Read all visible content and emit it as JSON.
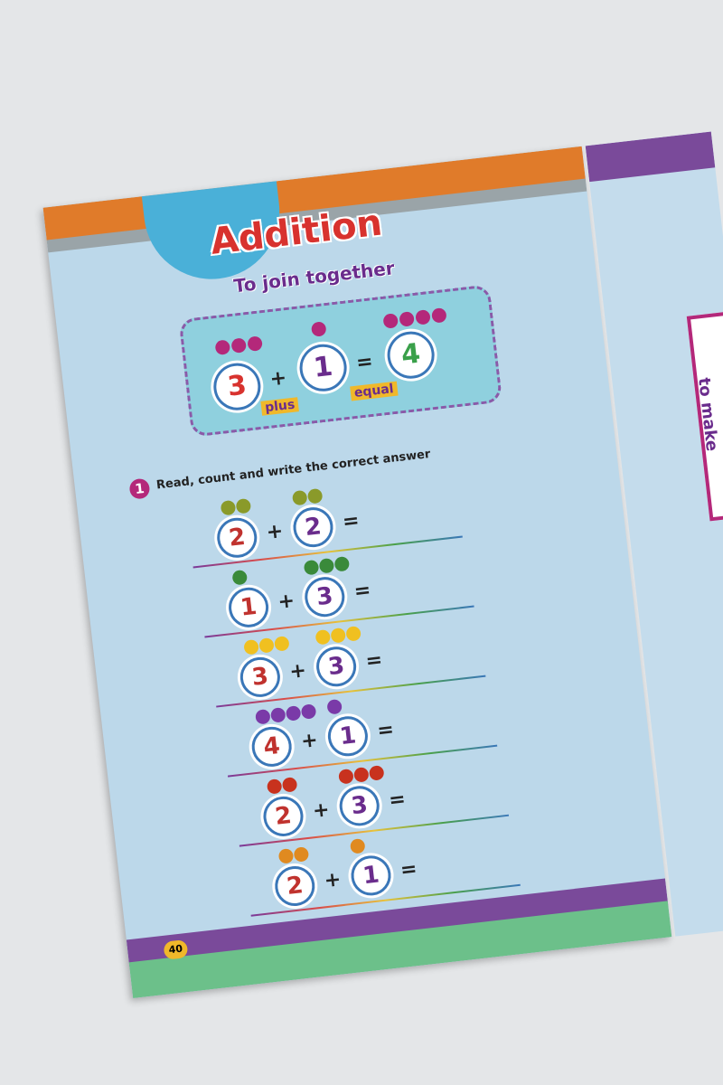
{
  "header": {
    "title": "Addition",
    "subtitle": "To join together"
  },
  "example": {
    "left": "3",
    "plus_sign": "+",
    "right": "1",
    "equals_sign": "=",
    "result": "4",
    "plus_label": "plus",
    "equal_label": "equal"
  },
  "exercise": {
    "number": "1",
    "instruction": "Read, count and write the correct answer",
    "rows": [
      {
        "left": "2",
        "operator": "+",
        "right": "2",
        "equals": "="
      },
      {
        "left": "1",
        "operator": "+",
        "right": "3",
        "equals": "="
      },
      {
        "left": "3",
        "operator": "+",
        "right": "3",
        "equals": "="
      },
      {
        "left": "4",
        "operator": "+",
        "right": "1",
        "equals": "="
      },
      {
        "left": "2",
        "operator": "+",
        "right": "3",
        "equals": "="
      },
      {
        "left": "2",
        "operator": "+",
        "right": "1",
        "equals": "="
      }
    ]
  },
  "page_number": "40",
  "right_page": {
    "label": "to make"
  }
}
